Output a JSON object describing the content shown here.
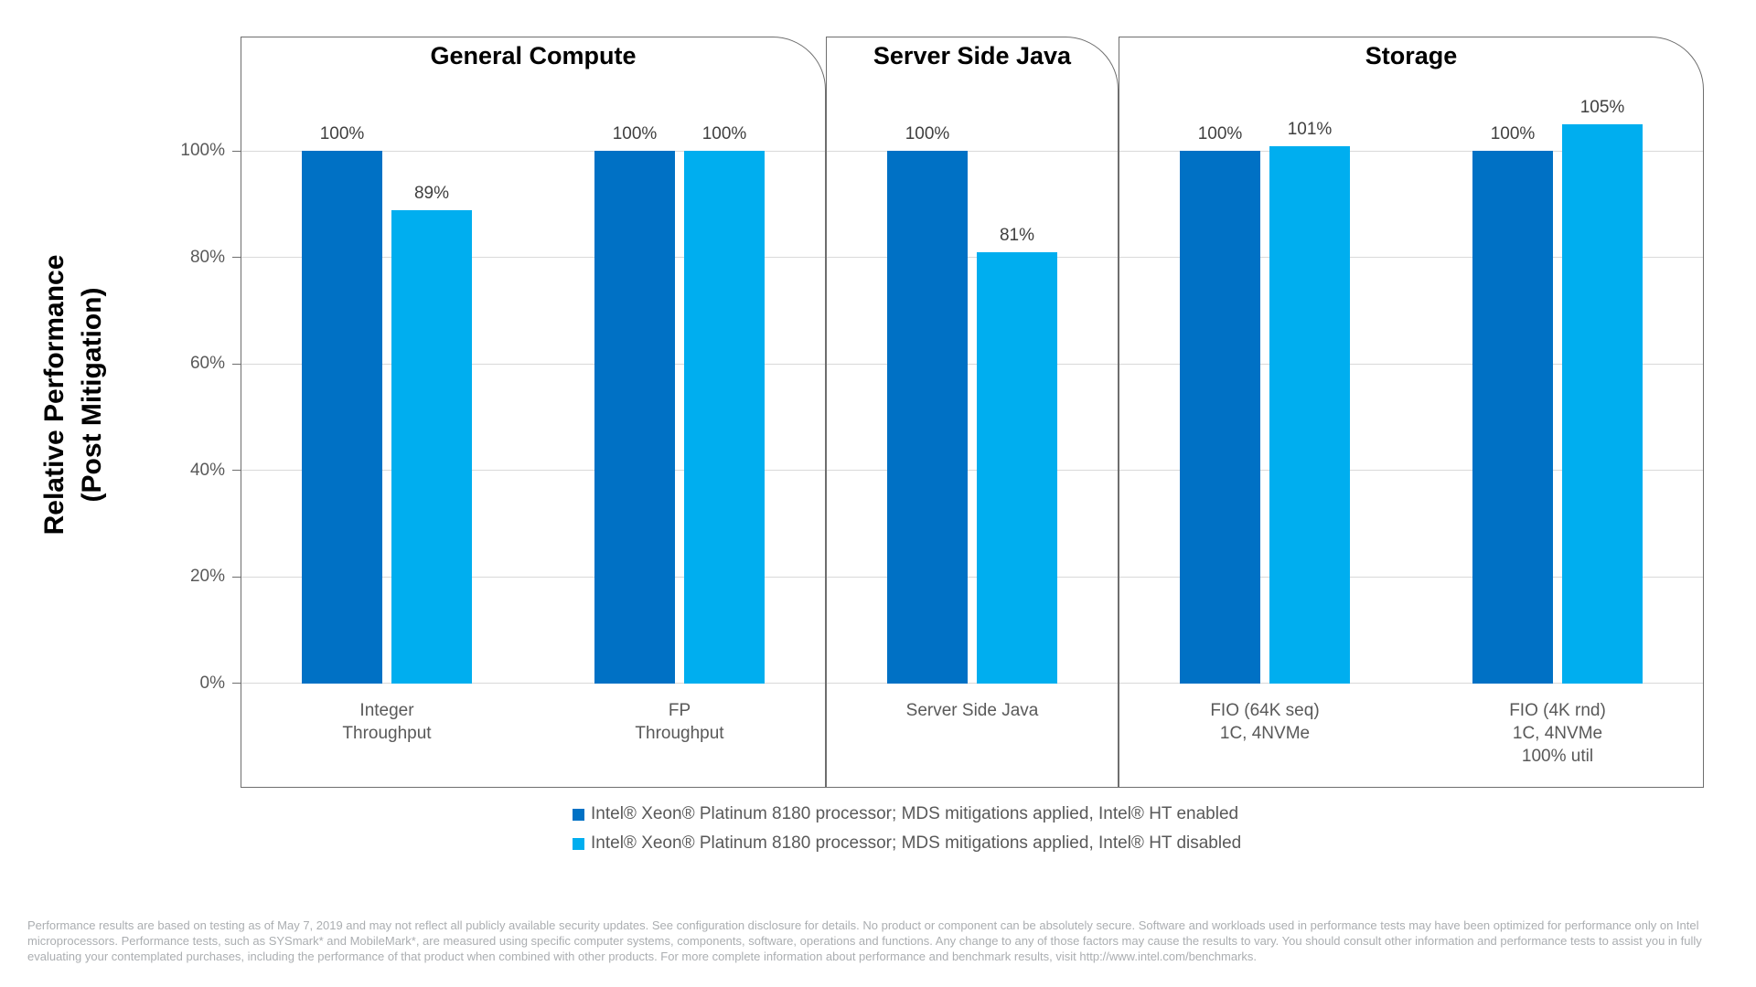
{
  "colors": {
    "series_dark": "#0071C5",
    "series_light": "#00AEEF",
    "grid": "#D9D9D9",
    "panel_border": "#6E6E6E",
    "tick_label": "#595959",
    "value_label": "#3F3F3F",
    "footer": "#ABAEB1"
  },
  "y_axis": {
    "title_line1": "Relative Performance",
    "title_line2": "(Post Mitigation)",
    "ticks": [
      {
        "label": "100%",
        "value": 100
      },
      {
        "label": "80%",
        "value": 80
      },
      {
        "label": "60%",
        "value": 60
      },
      {
        "label": "40%",
        "value": 40
      },
      {
        "label": "20%",
        "value": 20
      },
      {
        "label": "0%",
        "value": 0
      }
    ]
  },
  "chart_data": {
    "type": "bar",
    "title": "",
    "xlabel": "",
    "ylabel": "Relative Performance (Post Mitigation)",
    "ylim": [
      0,
      121
    ],
    "y_ticks": [
      0,
      20,
      40,
      60,
      80,
      100
    ],
    "grid": true,
    "legend_position": "bottom",
    "series_names": [
      "Intel® Xeon® Platinum 8180 processor; MDS mitigations applied, Intel® HT enabled",
      "Intel® Xeon® Platinum 8180 processor; MDS mitigations applied, Intel® HT disabled"
    ],
    "panels": [
      {
        "title": "General Compute",
        "groups": [
          {
            "category": [
              "Integer",
              "Throughput"
            ],
            "values": [
              100,
              89
            ],
            "labels": [
              "100%",
              "89%"
            ]
          },
          {
            "category": [
              "FP",
              "Throughput"
            ],
            "values": [
              100,
              100
            ],
            "labels": [
              "100%",
              "100%"
            ]
          }
        ]
      },
      {
        "title": "Server Side Java",
        "groups": [
          {
            "category": [
              "Server Side Java"
            ],
            "values": [
              100,
              81
            ],
            "labels": [
              "100%",
              "81%"
            ]
          }
        ]
      },
      {
        "title": "Storage",
        "groups": [
          {
            "category": [
              "FIO (64K seq)",
              "1C, 4NVMe"
            ],
            "values": [
              100,
              101
            ],
            "labels": [
              "100%",
              "101%"
            ]
          },
          {
            "category": [
              "FIO (4K rnd)",
              "1C, 4NVMe",
              "100% util"
            ],
            "values": [
              100,
              105
            ],
            "labels": [
              "100%",
              "105%"
            ]
          }
        ]
      }
    ]
  },
  "legend": {
    "items": [
      {
        "label": "Intel® Xeon® Platinum 8180 processor; MDS mitigations applied, Intel® HT enabled",
        "color_key": "series_dark"
      },
      {
        "label": "Intel® Xeon® Platinum 8180 processor; MDS mitigations applied, Intel® HT disabled",
        "color_key": "series_light"
      }
    ]
  },
  "footer": {
    "text": "Performance results are based on testing as of May 7, 2019 and may not reflect all publicly available security updates. See configuration disclosure for details. No product or component can be absolutely secure. Software and workloads used in performance tests may have been optimized for performance only on Intel microprocessors. Performance tests, such as SYSmark* and MobileMark*, are measured using specific computer systems, components, software, operations and functions.  Any change to any of those factors may cause the results to vary.  You should consult other information and performance tests to assist you in fully evaluating your contemplated purchases, including the performance of that product when combined with other products. For more complete information about performance and benchmark results, visit http://www.intel.com/benchmarks."
  }
}
